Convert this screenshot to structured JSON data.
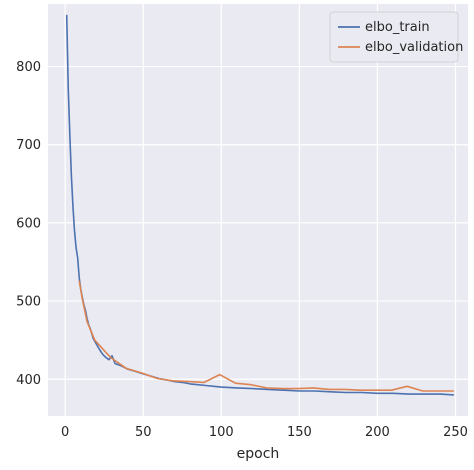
{
  "chart_data": {
    "type": "line",
    "title": "",
    "xlabel": "epoch",
    "ylabel": "",
    "xlim": [
      -11,
      258
    ],
    "ylim": [
      353,
      880
    ],
    "xticks": [
      0,
      50,
      100,
      150,
      200,
      250
    ],
    "yticks": [
      400,
      500,
      600,
      700,
      800
    ],
    "grid": true,
    "legend_position": "top-right",
    "colors": {
      "background": "#eaeaf2",
      "grid": "#ffffff",
      "text": "#262626"
    },
    "series": [
      {
        "name": "elbo_train",
        "color": "#4c72b0",
        "x": [
          1,
          2,
          3,
          4,
          5,
          6,
          7,
          8,
          9,
          10,
          11,
          12,
          13,
          14,
          15,
          16,
          18,
          20,
          22,
          24,
          26,
          28,
          30,
          32,
          35,
          38,
          40,
          45,
          50,
          55,
          60,
          65,
          70,
          75,
          80,
          85,
          90,
          95,
          100,
          110,
          120,
          130,
          140,
          150,
          160,
          170,
          180,
          190,
          200,
          210,
          220,
          230,
          240,
          249
        ],
        "y": [
          866,
          770,
          710,
          660,
          620,
          590,
          568,
          555,
          530,
          515,
          505,
          495,
          488,
          478,
          470,
          465,
          452,
          445,
          438,
          432,
          428,
          425,
          430,
          420,
          418,
          415,
          413,
          410,
          407,
          404,
          401,
          399,
          397,
          396,
          394,
          393,
          392,
          391,
          390,
          389,
          388,
          387,
          386,
          385,
          385,
          384,
          383,
          383,
          382,
          382,
          381,
          381,
          381,
          380
        ]
      },
      {
        "name": "elbo_validation",
        "color": "#dd8452",
        "x": [
          9,
          11,
          14,
          19,
          29,
          39,
          49,
          59,
          69,
          79,
          89,
          99,
          109,
          119,
          129,
          139,
          149,
          159,
          169,
          179,
          189,
          199,
          209,
          219,
          229,
          239,
          249
        ],
        "y": [
          526,
          503,
          474,
          450,
          428,
          414,
          408,
          401,
          398,
          397,
          396,
          406,
          395,
          393,
          389,
          388,
          388,
          389,
          387,
          387,
          386,
          386,
          386,
          391,
          385,
          385,
          385
        ]
      }
    ]
  }
}
